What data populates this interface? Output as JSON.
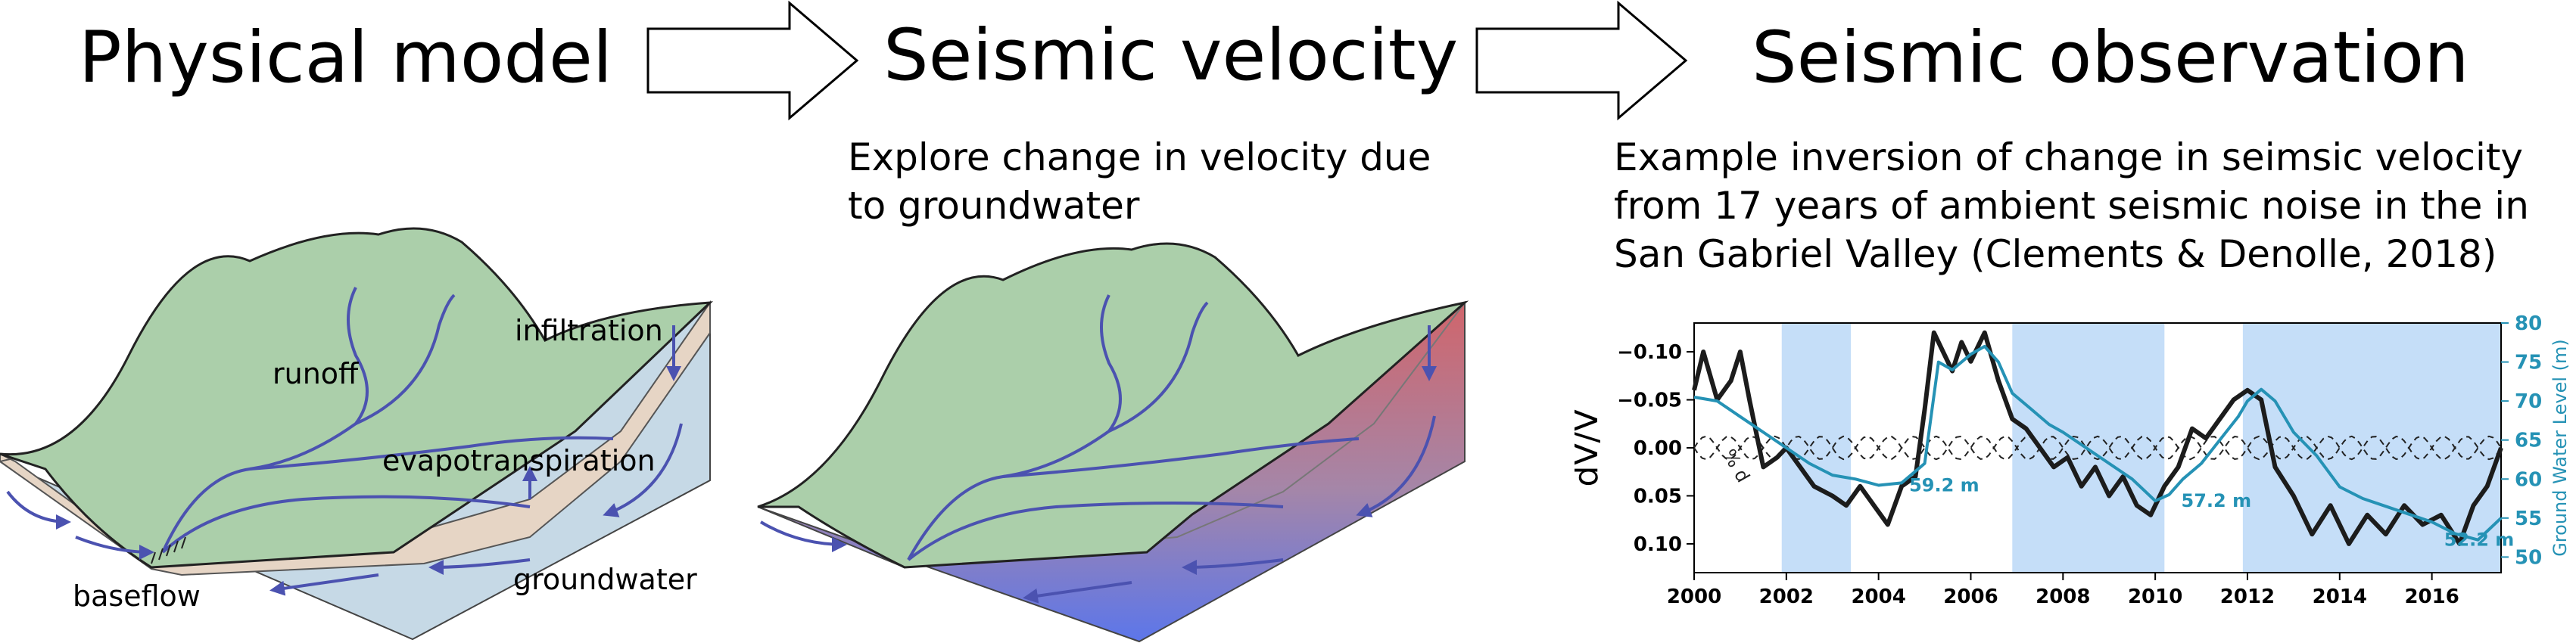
{
  "headers": {
    "physical": "Physical model",
    "velocity": "Seismic velocity",
    "observation": "Seismic observation"
  },
  "velocity_caption": [
    "Explore change in velocity due",
    "to groundwater"
  ],
  "observation_caption": [
    "Example inversion of change in seimsic velocity",
    "from 17 years of ambient seismic noise in the in",
    "San Gabriel Valley (Clements & Denolle, 2018)"
  ],
  "diagram_labels": {
    "runoff": "runoff",
    "infiltration": "infiltration",
    "evapotranspiration": "evapotranspiration",
    "groundwater": "groundwater",
    "baseflow": "baseflow"
  },
  "colors": {
    "land": "#abcfaa",
    "soil": "#e6d5c5",
    "water": "#c6d9e6",
    "arrow": "#4b52b0",
    "velocity_high": "#d0656b",
    "velocity_low": "#5c76ea",
    "dvv_line": "#1c1c1c",
    "gwl_line": "#2592b5",
    "drought_shade": "#c5def8"
  },
  "chart_data": {
    "type": "line",
    "xlim": [
      2000,
      2017.5
    ],
    "x_ticks": [
      "2000",
      "2002",
      "2004",
      "2006",
      "2008",
      "2010",
      "2012",
      "2014",
      "2016"
    ],
    "ylabel_left": "dV/V",
    "ylim_left": [
      0.13,
      -0.13
    ],
    "y_ticks_left": [
      "−0.10",
      "−0.05",
      "0.00",
      "0.05",
      "0.10"
    ],
    "ylabel_right": "Ground Water Level (m)",
    "ylim_right": [
      48,
      80
    ],
    "y_ticks_right": [
      "80",
      "75",
      "70",
      "65",
      "60",
      "55",
      "50"
    ],
    "shaded_periods": [
      [
        2001.9,
        2003.4
      ],
      [
        2006.9,
        2010.2
      ],
      [
        2011.9,
        2017.5
      ]
    ],
    "annotations": [
      "59.2 m",
      "57.2 m",
      "52.2 m"
    ],
    "seasonal_label": "% d",
    "series": [
      {
        "axis": "left",
        "x": [
          2000,
          2000.2,
          2000.5,
          2000.8,
          2001.0,
          2001.2,
          2001.5,
          2001.8,
          2002.0,
          2002.3,
          2002.6,
          2003.0,
          2003.3,
          2003.6,
          2003.9,
          2004.2,
          2004.5,
          2004.8,
          2005.0,
          2005.2,
          2005.4,
          2005.6,
          2005.8,
          2006.0,
          2006.3,
          2006.6,
          2006.9,
          2007.2,
          2007.5,
          2007.8,
          2008.1,
          2008.4,
          2008.7,
          2009.0,
          2009.3,
          2009.6,
          2009.9,
          2010.2,
          2010.5,
          2010.8,
          2011.1,
          2011.4,
          2011.7,
          2012.0,
          2012.3,
          2012.6,
          2013.0,
          2013.4,
          2013.8,
          2014.2,
          2014.6,
          2015.0,
          2015.4,
          2015.8,
          2016.2,
          2016.6,
          2016.9,
          2017.2,
          2017.5
        ],
        "y": [
          -0.06,
          -0.1,
          -0.05,
          -0.07,
          -0.1,
          -0.05,
          0.02,
          0.01,
          0.0,
          0.02,
          0.04,
          0.05,
          0.06,
          0.04,
          0.06,
          0.08,
          0.04,
          0.03,
          -0.04,
          -0.12,
          -0.1,
          -0.08,
          -0.11,
          -0.09,
          -0.12,
          -0.07,
          -0.03,
          -0.02,
          0.0,
          0.02,
          0.01,
          0.04,
          0.02,
          0.05,
          0.03,
          0.06,
          0.07,
          0.04,
          0.02,
          -0.02,
          -0.01,
          -0.03,
          -0.05,
          -0.06,
          -0.05,
          0.02,
          0.05,
          0.09,
          0.06,
          0.1,
          0.07,
          0.09,
          0.06,
          0.08,
          0.07,
          0.1,
          0.06,
          0.04,
          0.0
        ]
      },
      {
        "axis": "right",
        "x": [
          2000,
          2000.5,
          2001.0,
          2001.5,
          2002.0,
          2002.5,
          2003.0,
          2003.5,
          2004.0,
          2004.5,
          2005.0,
          2005.3,
          2005.6,
          2006.0,
          2006.3,
          2006.6,
          2006.9,
          2007.3,
          2007.7,
          2008.0,
          2008.5,
          2009.0,
          2009.5,
          2010.0,
          2010.3,
          2010.6,
          2011.0,
          2011.4,
          2011.8,
          2012.0,
          2012.3,
          2012.6,
          2013.0,
          2013.5,
          2014.0,
          2014.5,
          2015.0,
          2015.5,
          2016.0,
          2016.5,
          2017.0,
          2017.5
        ],
        "y": [
          70.5,
          70,
          68,
          66,
          64,
          62,
          60.5,
          60,
          59.2,
          59.5,
          62,
          75,
          74,
          76,
          77,
          75,
          71,
          69,
          67,
          66,
          64,
          62,
          60,
          57.2,
          58,
          60,
          62,
          65,
          68,
          70,
          71.5,
          70,
          66,
          63,
          59,
          57.5,
          56.5,
          55.5,
          54.5,
          53,
          52.2,
          55
        ]
      }
    ]
  }
}
